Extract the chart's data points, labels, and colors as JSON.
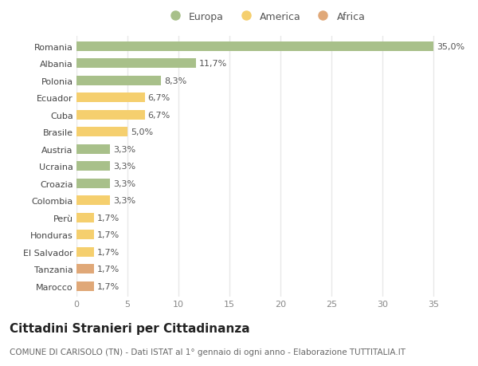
{
  "countries": [
    "Romania",
    "Albania",
    "Polonia",
    "Ecuador",
    "Cuba",
    "Brasile",
    "Austria",
    "Ucraina",
    "Croazia",
    "Colombia",
    "Perù",
    "Honduras",
    "El Salvador",
    "Tanzania",
    "Marocco"
  ],
  "values": [
    35.0,
    11.7,
    8.3,
    6.7,
    6.7,
    5.0,
    3.3,
    3.3,
    3.3,
    3.3,
    1.7,
    1.7,
    1.7,
    1.7,
    1.7
  ],
  "labels": [
    "35,0%",
    "11,7%",
    "8,3%",
    "6,7%",
    "6,7%",
    "5,0%",
    "3,3%",
    "3,3%",
    "3,3%",
    "3,3%",
    "1,7%",
    "1,7%",
    "1,7%",
    "1,7%",
    "1,7%"
  ],
  "continents": [
    "Europa",
    "Europa",
    "Europa",
    "America",
    "America",
    "America",
    "Europa",
    "Europa",
    "Europa",
    "America",
    "America",
    "America",
    "America",
    "Africa",
    "Africa"
  ],
  "colors": {
    "Europa": "#a8c08a",
    "America": "#f5cf6e",
    "Africa": "#e0a878"
  },
  "xlim": [
    0,
    37
  ],
  "xticks": [
    0,
    5,
    10,
    15,
    20,
    25,
    30,
    35
  ],
  "title": "Cittadini Stranieri per Cittadinanza",
  "subtitle": "COMUNE DI CARISOLO (TN) - Dati ISTAT al 1° gennaio di ogni anno - Elaborazione TUTTITALIA.IT",
  "plot_bg_color": "#ffffff",
  "fig_bg_color": "#ffffff",
  "grid_color": "#e8e8e8",
  "bar_height": 0.55,
  "title_fontsize": 11,
  "subtitle_fontsize": 7.5,
  "tick_fontsize": 8,
  "label_fontsize": 8,
  "legend_fontsize": 9
}
